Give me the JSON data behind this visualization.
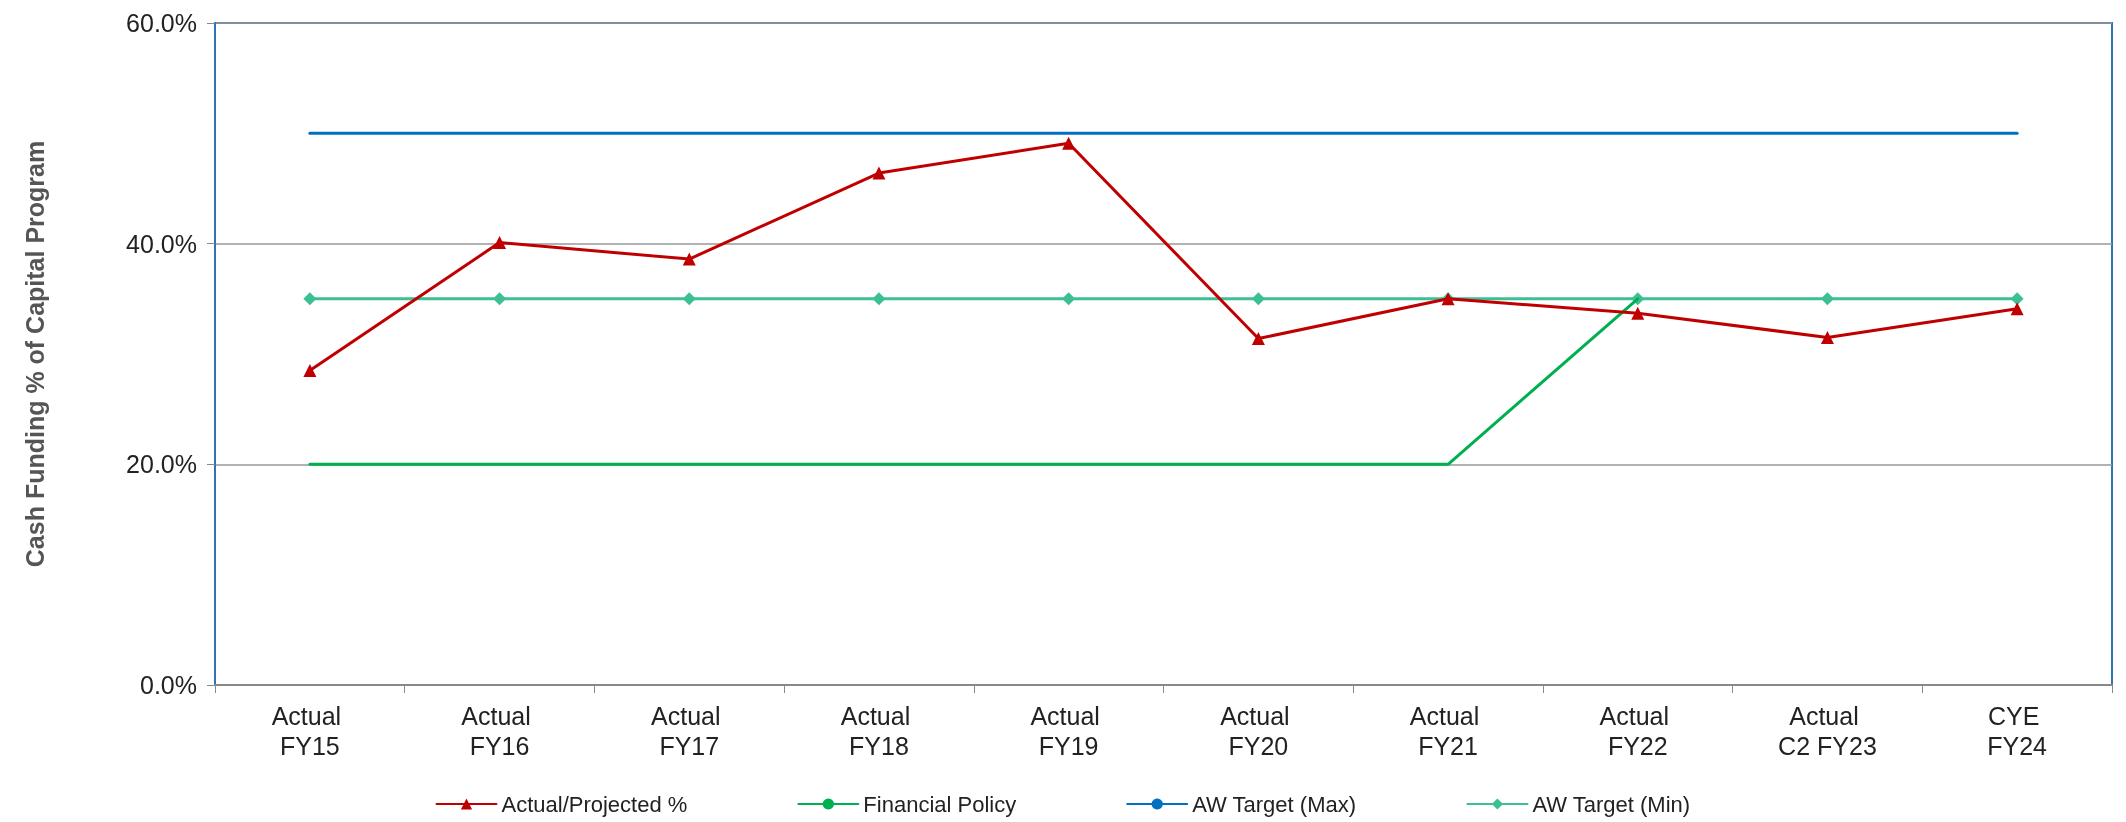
{
  "chart_data": {
    "type": "line",
    "ylabel": "Cash Funding % of Capital Program",
    "categories": [
      "Actual FY15",
      "Actual FY16",
      "Actual FY17",
      "Actual FY18",
      "Actual FY19",
      "Actual FY20",
      "Actual FY21",
      "Actual FY22",
      "Actual C2 FY23",
      "CYE FY24"
    ],
    "series": [
      {
        "name": "Actual/Projected %",
        "color": "#c00000",
        "marker": "triangle",
        "values": [
          28.5,
          40.1,
          38.6,
          46.4,
          49.1,
          31.4,
          35.0,
          33.7,
          31.5,
          34.1
        ]
      },
      {
        "name": "Financial Policy",
        "color": "#00b050",
        "marker": "none",
        "values": [
          20,
          20,
          20,
          20,
          20,
          20,
          20,
          35,
          null,
          null
        ]
      },
      {
        "name": "AW Target (Max)",
        "color": "#0070c0",
        "marker": "none",
        "values": [
          50,
          50,
          50,
          50,
          50,
          50,
          50,
          50,
          50,
          50
        ]
      },
      {
        "name": "AW Target (Min)",
        "color": "#3dbf94",
        "marker": "diamond",
        "values": [
          35,
          35,
          35,
          35,
          35,
          35,
          35,
          35,
          35,
          35
        ]
      }
    ],
    "ylim": [
      0,
      60
    ],
    "yticks": [
      {
        "value": 0,
        "label": "0.0%"
      },
      {
        "value": 20,
        "label": "20.0%"
      },
      {
        "value": 40,
        "label": "40.0%"
      },
      {
        "value": 60,
        "label": "60.0%"
      }
    ],
    "grid": "y",
    "legend": "bottom"
  }
}
